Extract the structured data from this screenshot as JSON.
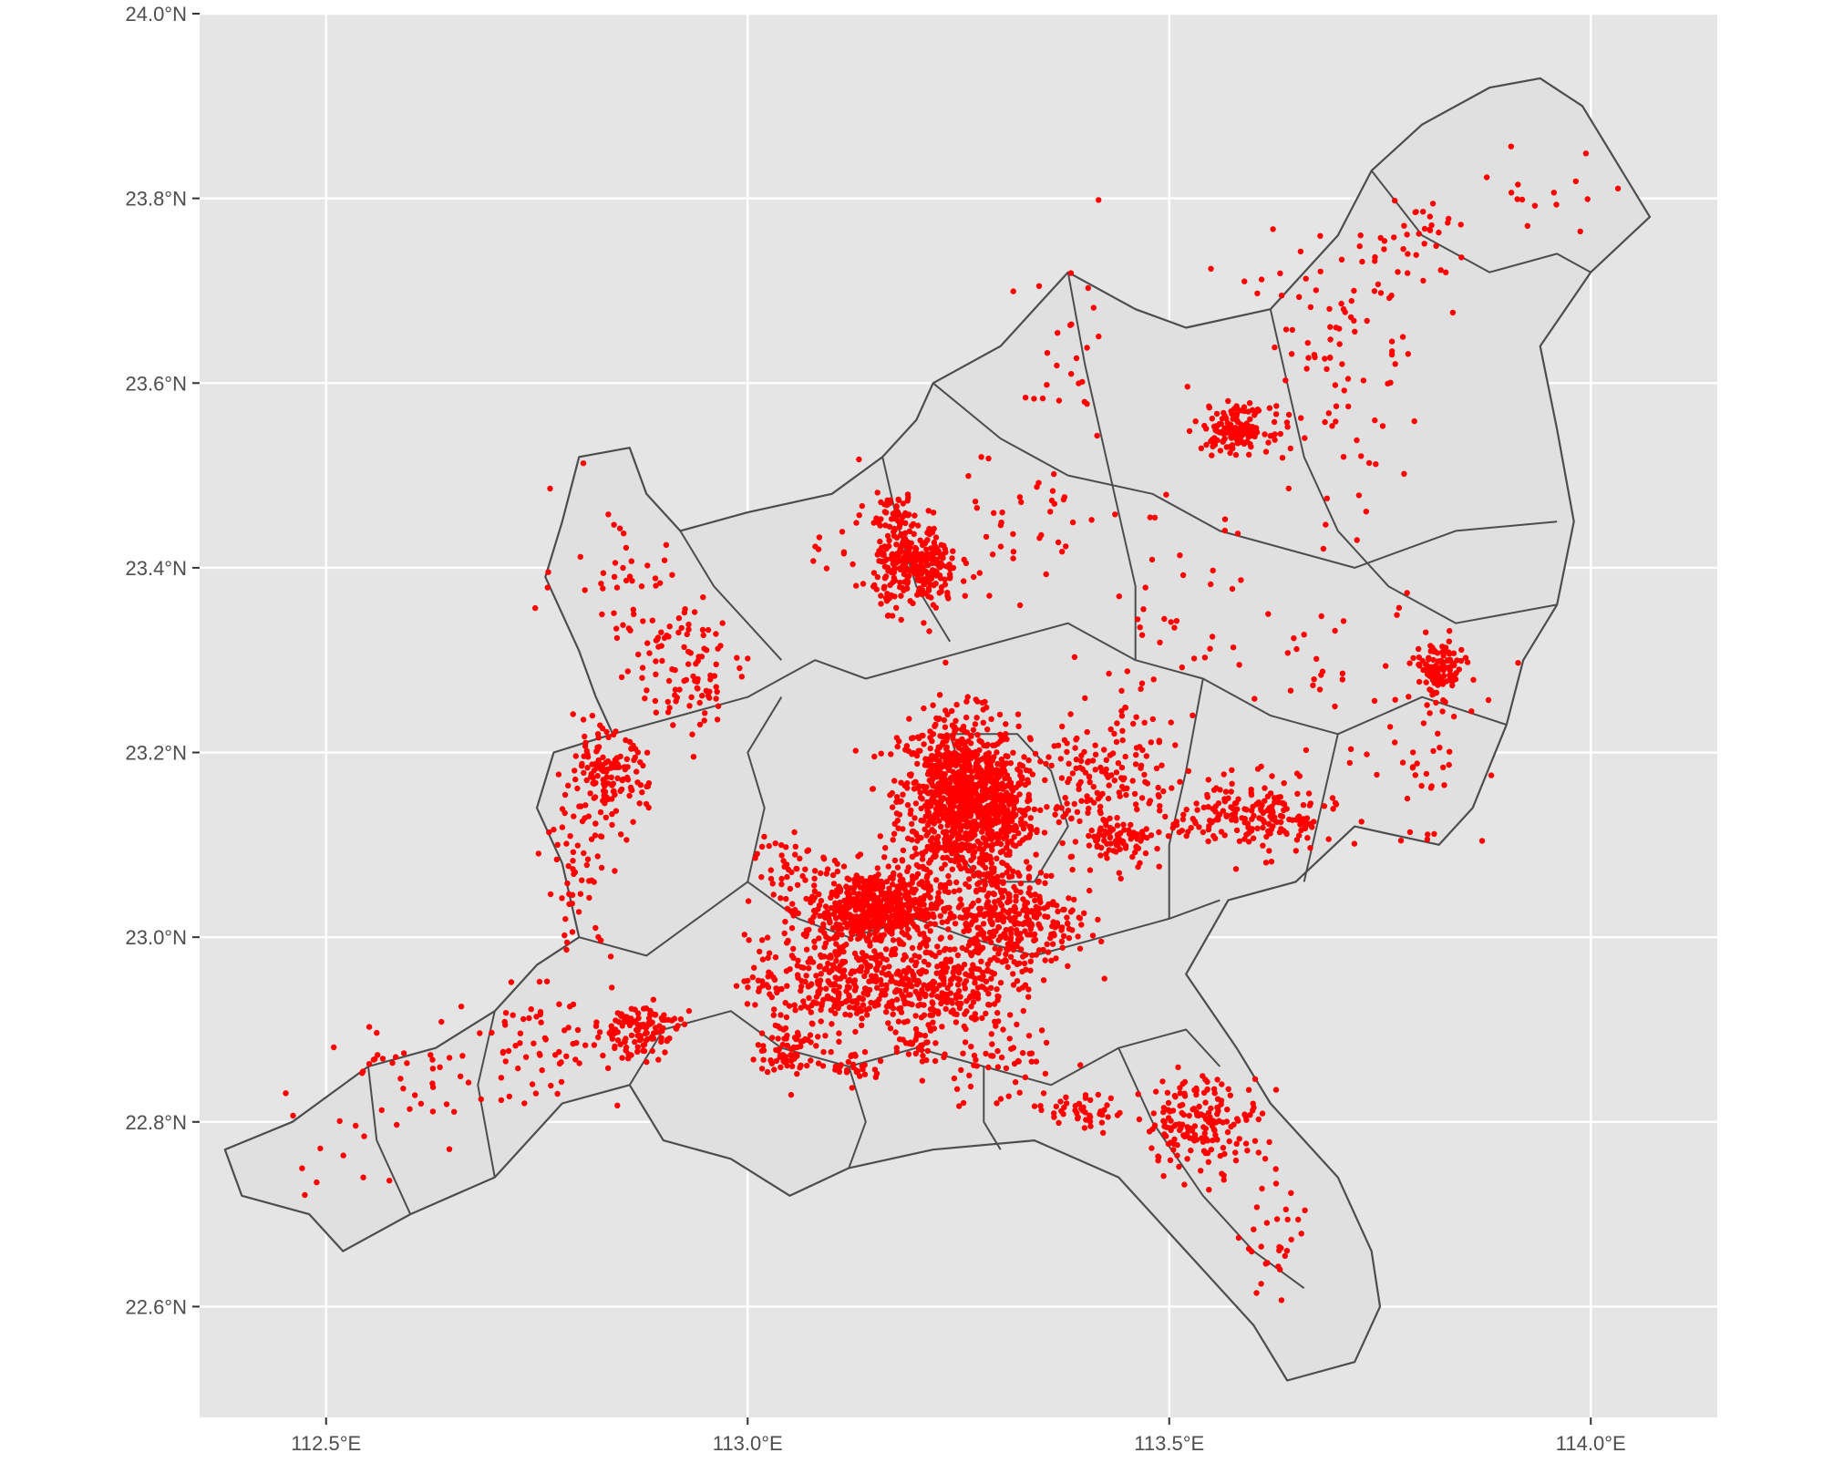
{
  "map": {
    "lon_range": [
      112.35,
      114.15
    ],
    "lat_range": [
      22.48,
      24.0
    ],
    "panel_color": "#e5e5e5",
    "grid_color": "#ffffff",
    "region_fill": "#e0e0e0",
    "border_color": "#4d4d4d",
    "point_color": "#ff0000",
    "x_ticks": [
      {
        "value": 112.5,
        "label": "112.5°E"
      },
      {
        "value": 113.0,
        "label": "113.0°E"
      },
      {
        "value": 113.5,
        "label": "113.5°E"
      },
      {
        "value": 114.0,
        "label": "114.0°E"
      }
    ],
    "y_ticks": [
      {
        "value": 22.6,
        "label": "22.6°N"
      },
      {
        "value": 22.8,
        "label": "22.8°N"
      },
      {
        "value": 23.0,
        "label": "23.0°N"
      },
      {
        "value": 23.2,
        "label": "23.2°N"
      },
      {
        "value": 23.4,
        "label": "23.4°N"
      },
      {
        "value": 23.6,
        "label": "23.6°N"
      },
      {
        "value": 23.8,
        "label": "23.8°N"
      },
      {
        "value": 24.0,
        "label": "24.0°N"
      }
    ],
    "outline": [
      [
        112.38,
        22.77
      ],
      [
        112.46,
        22.8
      ],
      [
        112.55,
        22.86
      ],
      [
        112.63,
        22.88
      ],
      [
        112.7,
        22.92
      ],
      [
        112.75,
        22.97
      ],
      [
        112.8,
        23.0
      ],
      [
        112.78,
        23.08
      ],
      [
        112.75,
        23.14
      ],
      [
        112.77,
        23.2
      ],
      [
        112.84,
        23.22
      ],
      [
        112.82,
        23.26
      ],
      [
        112.8,
        23.31
      ],
      [
        112.76,
        23.39
      ],
      [
        112.78,
        23.45
      ],
      [
        112.8,
        23.52
      ],
      [
        112.86,
        23.53
      ],
      [
        112.88,
        23.48
      ],
      [
        112.92,
        23.44
      ],
      [
        113.0,
        23.46
      ],
      [
        113.1,
        23.48
      ],
      [
        113.16,
        23.52
      ],
      [
        113.2,
        23.56
      ],
      [
        113.22,
        23.6
      ],
      [
        113.3,
        23.64
      ],
      [
        113.38,
        23.72
      ],
      [
        113.46,
        23.68
      ],
      [
        113.52,
        23.66
      ],
      [
        113.62,
        23.68
      ],
      [
        113.7,
        23.76
      ],
      [
        113.74,
        23.83
      ],
      [
        113.8,
        23.88
      ],
      [
        113.88,
        23.92
      ],
      [
        113.94,
        23.93
      ],
      [
        113.99,
        23.9
      ],
      [
        114.03,
        23.84
      ],
      [
        114.07,
        23.78
      ],
      [
        114.0,
        23.72
      ],
      [
        113.94,
        23.64
      ],
      [
        113.96,
        23.55
      ],
      [
        113.98,
        23.45
      ],
      [
        113.96,
        23.36
      ],
      [
        113.92,
        23.3
      ],
      [
        113.9,
        23.23
      ],
      [
        113.86,
        23.14
      ],
      [
        113.82,
        23.1
      ],
      [
        113.72,
        23.12
      ],
      [
        113.65,
        23.06
      ],
      [
        113.57,
        23.04
      ],
      [
        113.52,
        22.96
      ],
      [
        113.58,
        22.88
      ],
      [
        113.62,
        22.82
      ],
      [
        113.7,
        22.74
      ],
      [
        113.74,
        22.66
      ],
      [
        113.75,
        22.6
      ],
      [
        113.72,
        22.54
      ],
      [
        113.64,
        22.52
      ],
      [
        113.6,
        22.58
      ],
      [
        113.52,
        22.66
      ],
      [
        113.44,
        22.74
      ],
      [
        113.34,
        22.78
      ],
      [
        113.22,
        22.77
      ],
      [
        113.12,
        22.75
      ],
      [
        113.05,
        22.72
      ],
      [
        112.98,
        22.76
      ],
      [
        112.9,
        22.78
      ],
      [
        112.86,
        22.84
      ],
      [
        112.78,
        22.82
      ],
      [
        112.7,
        22.74
      ],
      [
        112.6,
        22.7
      ],
      [
        112.52,
        22.66
      ],
      [
        112.48,
        22.7
      ],
      [
        112.4,
        22.72
      ]
    ],
    "inner_borders": [
      [
        [
          112.8,
          23.0
        ],
        [
          112.88,
          22.98
        ],
        [
          112.94,
          23.02
        ],
        [
          113.0,
          23.06
        ],
        [
          113.06,
          23.02
        ],
        [
          113.12,
          23.0
        ],
        [
          113.2,
          23.02
        ],
        [
          113.26,
          23.0
        ],
        [
          113.34,
          22.98
        ],
        [
          113.42,
          23.0
        ],
        [
          113.5,
          23.02
        ],
        [
          113.56,
          23.04
        ]
      ],
      [
        [
          112.86,
          22.84
        ],
        [
          112.9,
          22.9
        ],
        [
          112.98,
          22.92
        ],
        [
          113.04,
          22.88
        ],
        [
          113.12,
          22.86
        ],
        [
          113.2,
          22.88
        ],
        [
          113.28,
          22.86
        ],
        [
          113.36,
          22.84
        ],
        [
          113.44,
          22.88
        ],
        [
          113.52,
          22.9
        ],
        [
          113.56,
          22.86
        ]
      ],
      [
        [
          112.84,
          23.22
        ],
        [
          112.92,
          23.24
        ],
        [
          113.0,
          23.26
        ],
        [
          113.08,
          23.3
        ],
        [
          113.14,
          23.28
        ],
        [
          113.22,
          23.3
        ],
        [
          113.3,
          23.32
        ],
        [
          113.38,
          23.34
        ],
        [
          113.46,
          23.3
        ],
        [
          113.54,
          23.28
        ],
        [
          113.62,
          23.24
        ],
        [
          113.7,
          23.22
        ],
        [
          113.8,
          23.26
        ],
        [
          113.9,
          23.23
        ]
      ],
      [
        [
          112.92,
          23.44
        ],
        [
          112.96,
          23.38
        ],
        [
          113.0,
          23.34
        ],
        [
          113.04,
          23.3
        ]
      ],
      [
        [
          113.16,
          23.52
        ],
        [
          113.18,
          23.44
        ],
        [
          113.2,
          23.38
        ],
        [
          113.24,
          23.32
        ]
      ],
      [
        [
          113.38,
          23.72
        ],
        [
          113.4,
          23.62
        ],
        [
          113.42,
          23.54
        ],
        [
          113.44,
          23.46
        ],
        [
          113.46,
          23.38
        ],
        [
          113.46,
          23.3
        ]
      ],
      [
        [
          113.62,
          23.68
        ],
        [
          113.64,
          23.6
        ],
        [
          113.66,
          23.52
        ],
        [
          113.7,
          23.44
        ],
        [
          113.76,
          23.38
        ],
        [
          113.84,
          23.34
        ],
        [
          113.96,
          23.36
        ]
      ],
      [
        [
          113.74,
          23.83
        ],
        [
          113.8,
          23.76
        ],
        [
          113.88,
          23.72
        ],
        [
          113.96,
          23.74
        ],
        [
          114.0,
          23.72
        ]
      ],
      [
        [
          113.22,
          23.6
        ],
        [
          113.3,
          23.54
        ],
        [
          113.38,
          23.5
        ],
        [
          113.48,
          23.48
        ],
        [
          113.56,
          23.44
        ],
        [
          113.64,
          23.42
        ],
        [
          113.72,
          23.4
        ],
        [
          113.84,
          23.44
        ],
        [
          113.96,
          23.45
        ]
      ],
      [
        [
          113.24,
          23.22
        ],
        [
          113.26,
          23.16
        ],
        [
          113.24,
          23.1
        ],
        [
          113.28,
          23.06
        ],
        [
          113.34,
          23.06
        ],
        [
          113.38,
          23.12
        ],
        [
          113.36,
          23.18
        ],
        [
          113.32,
          23.22
        ],
        [
          113.24,
          23.22
        ]
      ],
      [
        [
          113.0,
          23.06
        ],
        [
          113.02,
          23.14
        ],
        [
          113.0,
          23.2
        ],
        [
          113.04,
          23.26
        ]
      ],
      [
        [
          113.44,
          22.88
        ],
        [
          113.48,
          22.8
        ],
        [
          113.54,
          22.72
        ],
        [
          113.6,
          22.66
        ],
        [
          113.66,
          22.62
        ]
      ],
      [
        [
          113.12,
          22.86
        ],
        [
          113.14,
          22.8
        ],
        [
          113.12,
          22.75
        ]
      ],
      [
        [
          113.28,
          22.86
        ],
        [
          113.28,
          22.8
        ],
        [
          113.3,
          22.77
        ]
      ],
      [
        [
          112.7,
          22.92
        ],
        [
          112.68,
          22.84
        ],
        [
          112.7,
          22.74
        ]
      ],
      [
        [
          112.55,
          22.86
        ],
        [
          112.56,
          22.78
        ],
        [
          112.6,
          22.7
        ]
      ],
      [
        [
          113.66,
          23.06
        ],
        [
          113.68,
          23.14
        ],
        [
          113.7,
          23.22
        ]
      ],
      [
        [
          113.5,
          23.02
        ],
        [
          113.5,
          23.1
        ],
        [
          113.52,
          23.18
        ],
        [
          113.54,
          23.28
        ]
      ]
    ],
    "clusters": [
      {
        "lon": 113.25,
        "lat": 23.15,
        "n": 900,
        "sx": 0.035,
        "sy": 0.045
      },
      {
        "lon": 113.3,
        "lat": 23.14,
        "n": 250,
        "sx": 0.02,
        "sy": 0.025
      },
      {
        "lon": 113.15,
        "lat": 23.03,
        "n": 600,
        "sx": 0.04,
        "sy": 0.022
      },
      {
        "lon": 113.31,
        "lat": 23.02,
        "n": 350,
        "sx": 0.04,
        "sy": 0.03
      },
      {
        "lon": 113.1,
        "lat": 22.95,
        "n": 300,
        "sx": 0.05,
        "sy": 0.025
      },
      {
        "lon": 113.23,
        "lat": 22.95,
        "n": 250,
        "sx": 0.04,
        "sy": 0.025
      },
      {
        "lon": 113.2,
        "lat": 23.4,
        "n": 300,
        "sx": 0.025,
        "sy": 0.022
      },
      {
        "lon": 113.17,
        "lat": 23.46,
        "n": 40,
        "sx": 0.015,
        "sy": 0.01
      },
      {
        "lon": 113.58,
        "lat": 23.55,
        "n": 150,
        "sx": 0.02,
        "sy": 0.012
      },
      {
        "lon": 113.82,
        "lat": 23.29,
        "n": 120,
        "sx": 0.015,
        "sy": 0.015
      },
      {
        "lon": 113.6,
        "lat": 23.13,
        "n": 200,
        "sx": 0.05,
        "sy": 0.02
      },
      {
        "lon": 113.42,
        "lat": 23.16,
        "n": 180,
        "sx": 0.04,
        "sy": 0.04
      },
      {
        "lon": 113.44,
        "lat": 23.11,
        "n": 60,
        "sx": 0.02,
        "sy": 0.01
      },
      {
        "lon": 113.54,
        "lat": 22.8,
        "n": 180,
        "sx": 0.035,
        "sy": 0.025
      },
      {
        "lon": 113.4,
        "lat": 22.81,
        "n": 40,
        "sx": 0.02,
        "sy": 0.01
      },
      {
        "lon": 113.3,
        "lat": 22.87,
        "n": 60,
        "sx": 0.04,
        "sy": 0.03
      },
      {
        "lon": 112.87,
        "lat": 22.9,
        "n": 120,
        "sx": 0.025,
        "sy": 0.015
      },
      {
        "lon": 112.83,
        "lat": 23.17,
        "n": 150,
        "sx": 0.025,
        "sy": 0.025
      },
      {
        "lon": 112.8,
        "lat": 23.06,
        "n": 50,
        "sx": 0.02,
        "sy": 0.04
      },
      {
        "lon": 112.92,
        "lat": 23.3,
        "n": 70,
        "sx": 0.04,
        "sy": 0.04
      },
      {
        "lon": 112.85,
        "lat": 23.4,
        "n": 40,
        "sx": 0.04,
        "sy": 0.04
      },
      {
        "lon": 113.05,
        "lat": 22.88,
        "n": 80,
        "sx": 0.02,
        "sy": 0.015
      },
      {
        "lon": 113.13,
        "lat": 22.86,
        "n": 30,
        "sx": 0.015,
        "sy": 0.01
      },
      {
        "lon": 113.2,
        "lat": 22.88,
        "n": 30,
        "sx": 0.015,
        "sy": 0.01
      },
      {
        "lon": 113.63,
        "lat": 22.67,
        "n": 30,
        "sx": 0.02,
        "sy": 0.03
      },
      {
        "lon": 113.7,
        "lat": 23.68,
        "n": 60,
        "sx": 0.05,
        "sy": 0.05
      },
      {
        "lon": 113.8,
        "lat": 23.76,
        "n": 30,
        "sx": 0.03,
        "sy": 0.02
      },
      {
        "lon": 113.95,
        "lat": 23.8,
        "n": 15,
        "sx": 0.04,
        "sy": 0.03
      },
      {
        "lon": 113.5,
        "lat": 23.33,
        "n": 40,
        "sx": 0.05,
        "sy": 0.06
      },
      {
        "lon": 113.7,
        "lat": 23.28,
        "n": 40,
        "sx": 0.06,
        "sy": 0.05
      },
      {
        "lon": 113.7,
        "lat": 23.55,
        "n": 40,
        "sx": 0.06,
        "sy": 0.06
      },
      {
        "lon": 113.38,
        "lat": 23.6,
        "n": 25,
        "sx": 0.03,
        "sy": 0.06
      },
      {
        "lon": 113.33,
        "lat": 23.45,
        "n": 40,
        "sx": 0.05,
        "sy": 0.04
      },
      {
        "lon": 112.6,
        "lat": 22.84,
        "n": 40,
        "sx": 0.05,
        "sy": 0.04
      },
      {
        "lon": 112.75,
        "lat": 22.88,
        "n": 60,
        "sx": 0.04,
        "sy": 0.03
      },
      {
        "lon": 112.5,
        "lat": 22.78,
        "n": 10,
        "sx": 0.04,
        "sy": 0.03
      },
      {
        "lon": 113.82,
        "lat": 23.18,
        "n": 30,
        "sx": 0.04,
        "sy": 0.05
      },
      {
        "lon": 113.05,
        "lat": 23.08,
        "n": 40,
        "sx": 0.02,
        "sy": 0.02
      },
      {
        "lon": 112.95,
        "lat": 23.28,
        "n": 30,
        "sx": 0.03,
        "sy": 0.03
      },
      {
        "lon": 113.12,
        "lat": 23.44,
        "n": 15,
        "sx": 0.03,
        "sy": 0.03
      }
    ]
  }
}
